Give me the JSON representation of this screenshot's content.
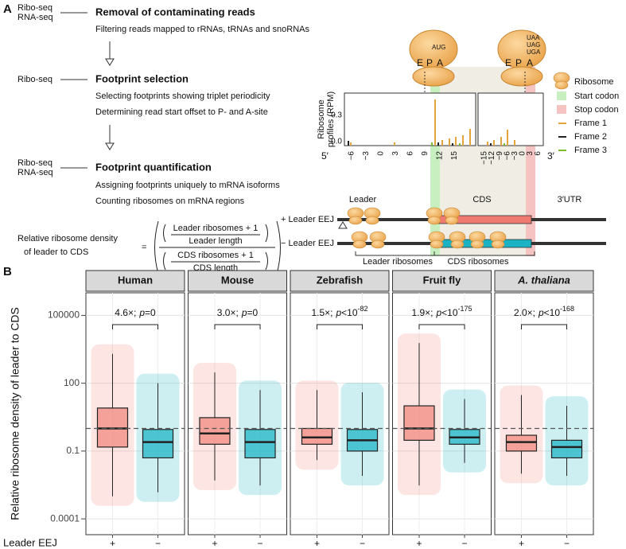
{
  "panel_a": {
    "label": "A",
    "steps": [
      {
        "seq": [
          "Ribo-seq",
          "RNA-seq"
        ],
        "title": "Removal of contaminating reads",
        "details": [
          "Filtering reads mapped to rRNAs, tRNAs and snoRNAs"
        ]
      },
      {
        "seq": [
          "Ribo-seq"
        ],
        "title": "Footprint selection",
        "details": [
          "Selecting footprints showing triplet periodicity",
          "Determining read start offset to P- and A-site"
        ]
      },
      {
        "seq": [
          "Ribo-seq",
          "RNA-seq"
        ],
        "title": "Footprint quantification",
        "details": [
          "Assigning footprints uniquely to mRNA isoforms",
          "Counting ribosomes on mRNA regions"
        ]
      }
    ],
    "formula": {
      "lhs": [
        "Relative ribosome density",
        "of leader to CDS"
      ],
      "equals": "=",
      "numerator": {
        "top": "Leader ribosomes + 1",
        "bottom": "Leader length"
      },
      "denominator": {
        "top": "CDS ribosomes + 1",
        "bottom": "CDS length"
      }
    },
    "ribosomes": [
      {
        "sites": [
          "E",
          "P",
          "A"
        ],
        "codons": [
          "AUG"
        ]
      },
      {
        "sites": [
          "E",
          "P",
          "A"
        ],
        "codons": [
          "UAA",
          "UAG",
          "UGA"
        ]
      }
    ],
    "profile": {
      "ylabel": [
        "Ribosome",
        "profiles (RPM)"
      ],
      "yticks": [
        "0.3",
        "0.0"
      ],
      "xticks_start": [
        "−6",
        "−3",
        "0",
        "3",
        "6",
        "9",
        "12",
        "15"
      ],
      "xticks_stop": [
        "−15",
        "−12",
        "−9",
        "−6",
        "−3",
        "0",
        "3",
        "6"
      ],
      "end5": "5′",
      "end3": "3′"
    },
    "legend": [
      "Ribosome",
      "Start codon",
      "Stop codon",
      "Frame 1",
      "Frame 2",
      "Frame 3"
    ],
    "mrna": {
      "regions": [
        "Leader",
        "CDS",
        "3′UTR"
      ],
      "rows": [
        "+ Leader EEJ",
        "− Leader EEJ"
      ],
      "counts": [
        "Leader ribosomes",
        "CDS ribosomes"
      ]
    }
  },
  "chart_data": {
    "type": "box",
    "label": "B",
    "ylabel": "Relative ribosome density of leader to CDS",
    "xlabel": "Leader EEJ",
    "groups": [
      "+",
      "−"
    ],
    "group_colors": [
      "#f08a80",
      "#22b5c6"
    ],
    "log_scale": true,
    "grid": true,
    "ylim": [
      2e-05,
      1000000
    ],
    "yticks": [
      0.0001,
      0.1,
      100,
      100000
    ],
    "reference_line": 1,
    "facets": [
      {
        "title": "Human",
        "annotation": {
          "fold": "4.6×;",
          "p": "p",
          "relation": "=0"
        },
        "boxes": [
          {
            "low": 0.001,
            "q1": 0.15,
            "median": 1,
            "q3": 8,
            "high": 2000
          },
          {
            "low": 0.0015,
            "q1": 0.05,
            "median": 0.25,
            "q3": 0.9,
            "high": 100
          }
        ]
      },
      {
        "title": "Mouse",
        "annotation": {
          "fold": "3.0×;",
          "p": "p",
          "relation": "=0"
        },
        "boxes": [
          {
            "low": 0.005,
            "q1": 0.2,
            "median": 0.6,
            "q3": 3,
            "high": 300
          },
          {
            "low": 0.003,
            "q1": 0.05,
            "median": 0.25,
            "q3": 0.9,
            "high": 50
          }
        ]
      },
      {
        "title": "Zebrafish",
        "annotation": {
          "fold": "1.5×;",
          "p": "p",
          "relation": "<10",
          "exponent": "-82"
        },
        "boxes": [
          {
            "low": 0.04,
            "q1": 0.2,
            "median": 0.4,
            "q3": 1,
            "high": 50
          },
          {
            "low": 0.008,
            "q1": 0.1,
            "median": 0.3,
            "q3": 0.9,
            "high": 40
          }
        ]
      },
      {
        "title": "Fruit fly",
        "annotation": {
          "fold": "1.9×;",
          "p": "p",
          "relation": "<10",
          "exponent": "-175"
        },
        "boxes": [
          {
            "low": 0.003,
            "q1": 0.3,
            "median": 1,
            "q3": 10,
            "high": 6000
          },
          {
            "low": 0.03,
            "q1": 0.2,
            "median": 0.4,
            "q3": 0.9,
            "high": 20
          }
        ]
      },
      {
        "title": "A. thaliana",
        "title_italic": true,
        "annotation": {
          "fold": "2.0×;",
          "p": "p",
          "relation": "<10",
          "exponent": "-168"
        },
        "boxes": [
          {
            "low": 0.01,
            "q1": 0.1,
            "median": 0.25,
            "q3": 0.5,
            "high": 30
          },
          {
            "low": 0.008,
            "q1": 0.05,
            "median": 0.15,
            "q3": 0.3,
            "high": 10
          }
        ]
      }
    ]
  }
}
